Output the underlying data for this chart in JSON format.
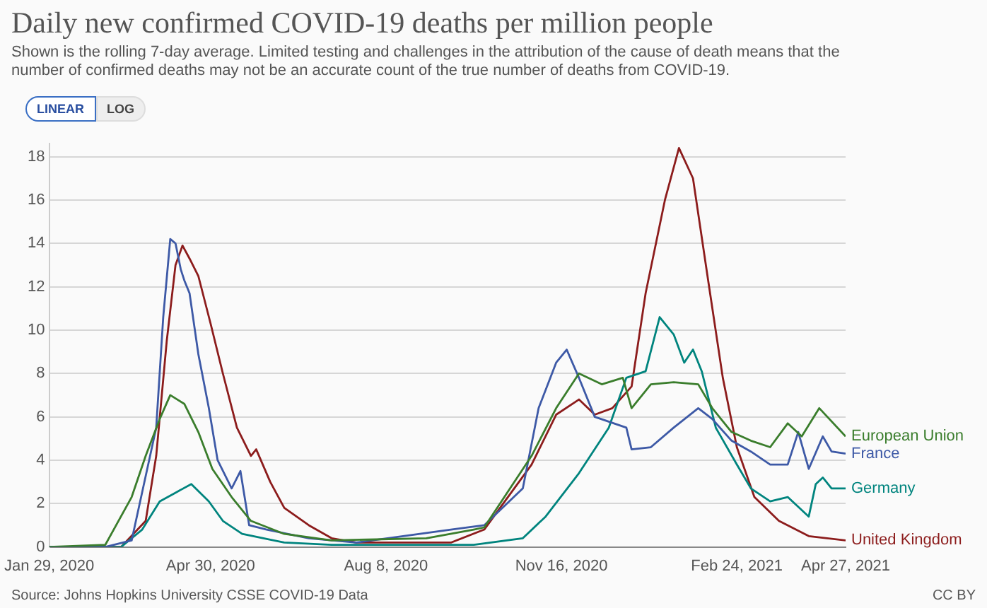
{
  "chart_data": {
    "type": "line",
    "title": "Daily new confirmed COVID-19 deaths per million people",
    "subtitle": "Shown is the rolling 7-day average. Limited testing and challenges in the attribution of the cause of death means that the number of confirmed deaths may not be an accurate count of the true number of deaths from COVID-19.",
    "annotations": [
      "LINEAR",
      "LOG",
      "Source: Johns Hopkins University CSSE COVID-19 Data",
      "CC BY"
    ],
    "xlim": [
      "2020-01-29",
      "2021-04-27"
    ],
    "xticks": [
      {
        "value": "2020-01-29",
        "label": "Jan 29, 2020"
      },
      {
        "value": "2020-04-30",
        "label": "Apr 30, 2020"
      },
      {
        "value": "2020-08-08",
        "label": "Aug 8, 2020"
      },
      {
        "value": "2020-11-16",
        "label": "Nov 16, 2020"
      },
      {
        "value": "2021-02-24",
        "label": "Feb 24, 2021"
      },
      {
        "value": "2021-04-27",
        "label": "Apr 27, 2021"
      }
    ],
    "ylim": [
      0,
      18.6
    ],
    "yticks": [
      0,
      2,
      4,
      6,
      8,
      10,
      12,
      14,
      16,
      18
    ],
    "grid": "y",
    "legend": false,
    "marker": "none",
    "line_style": "solid",
    "series": [
      {
        "name": "European Union",
        "color": "#3a7d2c",
        "x": [
          "2020-01-29",
          "2020-03-01",
          "2020-03-16",
          "2020-03-24",
          "2020-04-01",
          "2020-04-07",
          "2020-04-15",
          "2020-04-23",
          "2020-05-01",
          "2020-05-12",
          "2020-05-23",
          "2020-06-11",
          "2020-07-08",
          "2020-08-31",
          "2020-09-27",
          "2020-10-03",
          "2020-10-30",
          "2020-11-13",
          "2020-11-26",
          "2020-12-09",
          "2020-12-21",
          "2020-12-26",
          "2021-01-06",
          "2021-01-19",
          "2021-02-02",
          "2021-02-10",
          "2021-02-21",
          "2021-03-04",
          "2021-03-15",
          "2021-03-25",
          "2021-04-02",
          "2021-04-12",
          "2021-04-27"
        ],
        "values": [
          0,
          0.1,
          2.3,
          4.2,
          5.9,
          7.0,
          6.6,
          5.3,
          3.6,
          2.3,
          1.2,
          0.6,
          0.3,
          0.4,
          0.8,
          0.9,
          4.2,
          6.4,
          8.0,
          7.5,
          7.8,
          6.4,
          7.5,
          7.6,
          7.5,
          6.4,
          5.3,
          4.9,
          4.6,
          5.7,
          5.1,
          6.4,
          5.1
        ]
      },
      {
        "name": "France",
        "color": "#3d59a6",
        "x": [
          "2020-01-29",
          "2020-03-01",
          "2020-03-16",
          "2020-03-30",
          "2020-04-03",
          "2020-04-07",
          "2020-04-10",
          "2020-04-13",
          "2020-04-15",
          "2020-04-18",
          "2020-04-23",
          "2020-04-29",
          "2020-05-04",
          "2020-05-12",
          "2020-05-17",
          "2020-05-22",
          "2020-06-01",
          "2020-06-25",
          "2020-07-22",
          "2020-09-14",
          "2020-10-03",
          "2020-10-25",
          "2020-11-03",
          "2020-11-13",
          "2020-11-19",
          "2020-11-26",
          "2020-12-05",
          "2020-12-23",
          "2020-12-26",
          "2021-01-06",
          "2021-01-19",
          "2021-02-02",
          "2021-02-10",
          "2021-02-21",
          "2021-03-04",
          "2021-03-15",
          "2021-03-25",
          "2021-03-31",
          "2021-04-06",
          "2021-04-14",
          "2021-04-19",
          "2021-04-27"
        ],
        "values": [
          0,
          0,
          0.3,
          5.5,
          10.6,
          14.2,
          14.0,
          12.8,
          12.3,
          11.7,
          8.9,
          6.4,
          4.0,
          2.7,
          3.5,
          1.0,
          0.8,
          0.4,
          0.2,
          0.8,
          1.0,
          2.7,
          6.4,
          8.5,
          9.1,
          7.8,
          6.0,
          5.5,
          4.5,
          4.6,
          5.5,
          6.4,
          5.9,
          4.9,
          4.4,
          3.8,
          3.8,
          5.3,
          3.6,
          5.1,
          4.4,
          4.3
        ]
      },
      {
        "name": "Germany",
        "color": "#00847e",
        "x": [
          "2020-01-29",
          "2020-03-10",
          "2020-03-22",
          "2020-04-01",
          "2020-04-10",
          "2020-04-19",
          "2020-04-29",
          "2020-05-07",
          "2020-05-18",
          "2020-06-11",
          "2020-07-08",
          "2020-09-27",
          "2020-10-25",
          "2020-11-07",
          "2020-11-26",
          "2020-12-13",
          "2020-12-23",
          "2021-01-03",
          "2021-01-11",
          "2021-01-19",
          "2021-01-25",
          "2021-01-30",
          "2021-02-04",
          "2021-02-12",
          "2021-02-24",
          "2021-03-04",
          "2021-03-15",
          "2021-03-25",
          "2021-04-06",
          "2021-04-10",
          "2021-04-14",
          "2021-04-19",
          "2021-04-27"
        ],
        "values": [
          0,
          0,
          0.8,
          2.1,
          2.5,
          2.9,
          2.1,
          1.2,
          0.6,
          0.2,
          0.1,
          0.1,
          0.4,
          1.4,
          3.4,
          5.5,
          7.8,
          8.1,
          10.6,
          9.8,
          8.5,
          9.1,
          8.1,
          5.5,
          3.8,
          2.7,
          2.1,
          2.3,
          1.4,
          2.9,
          3.2,
          2.7,
          2.7
        ]
      },
      {
        "name": "United Kingdom",
        "color": "#8c1c1c",
        "x": [
          "2020-01-29",
          "2020-03-10",
          "2020-03-24",
          "2020-03-30",
          "2020-04-05",
          "2020-04-10",
          "2020-04-14",
          "2020-04-18",
          "2020-04-23",
          "2020-04-30",
          "2020-05-07",
          "2020-05-15",
          "2020-05-23",
          "2020-05-26",
          "2020-06-03",
          "2020-06-11",
          "2020-06-25",
          "2020-07-08",
          "2020-07-22",
          "2020-09-14",
          "2020-10-03",
          "2020-10-30",
          "2020-11-13",
          "2020-11-26",
          "2020-12-05",
          "2020-12-15",
          "2020-12-26",
          "2021-01-03",
          "2021-01-14",
          "2021-01-22",
          "2021-01-30",
          "2021-02-08",
          "2021-02-16",
          "2021-02-24",
          "2021-03-06",
          "2021-03-20",
          "2021-04-06",
          "2021-04-27"
        ],
        "values": [
          0,
          0,
          1.2,
          4.2,
          9.5,
          13.0,
          13.9,
          13.3,
          12.5,
          10.3,
          8.0,
          5.5,
          4.2,
          4.5,
          3.0,
          1.8,
          1.0,
          0.4,
          0.2,
          0.2,
          0.8,
          3.8,
          6.1,
          6.8,
          6.1,
          6.4,
          7.4,
          11.7,
          16.0,
          18.4,
          17.0,
          12.1,
          7.8,
          4.6,
          2.3,
          1.2,
          0.5,
          0.3
        ]
      }
    ]
  }
}
